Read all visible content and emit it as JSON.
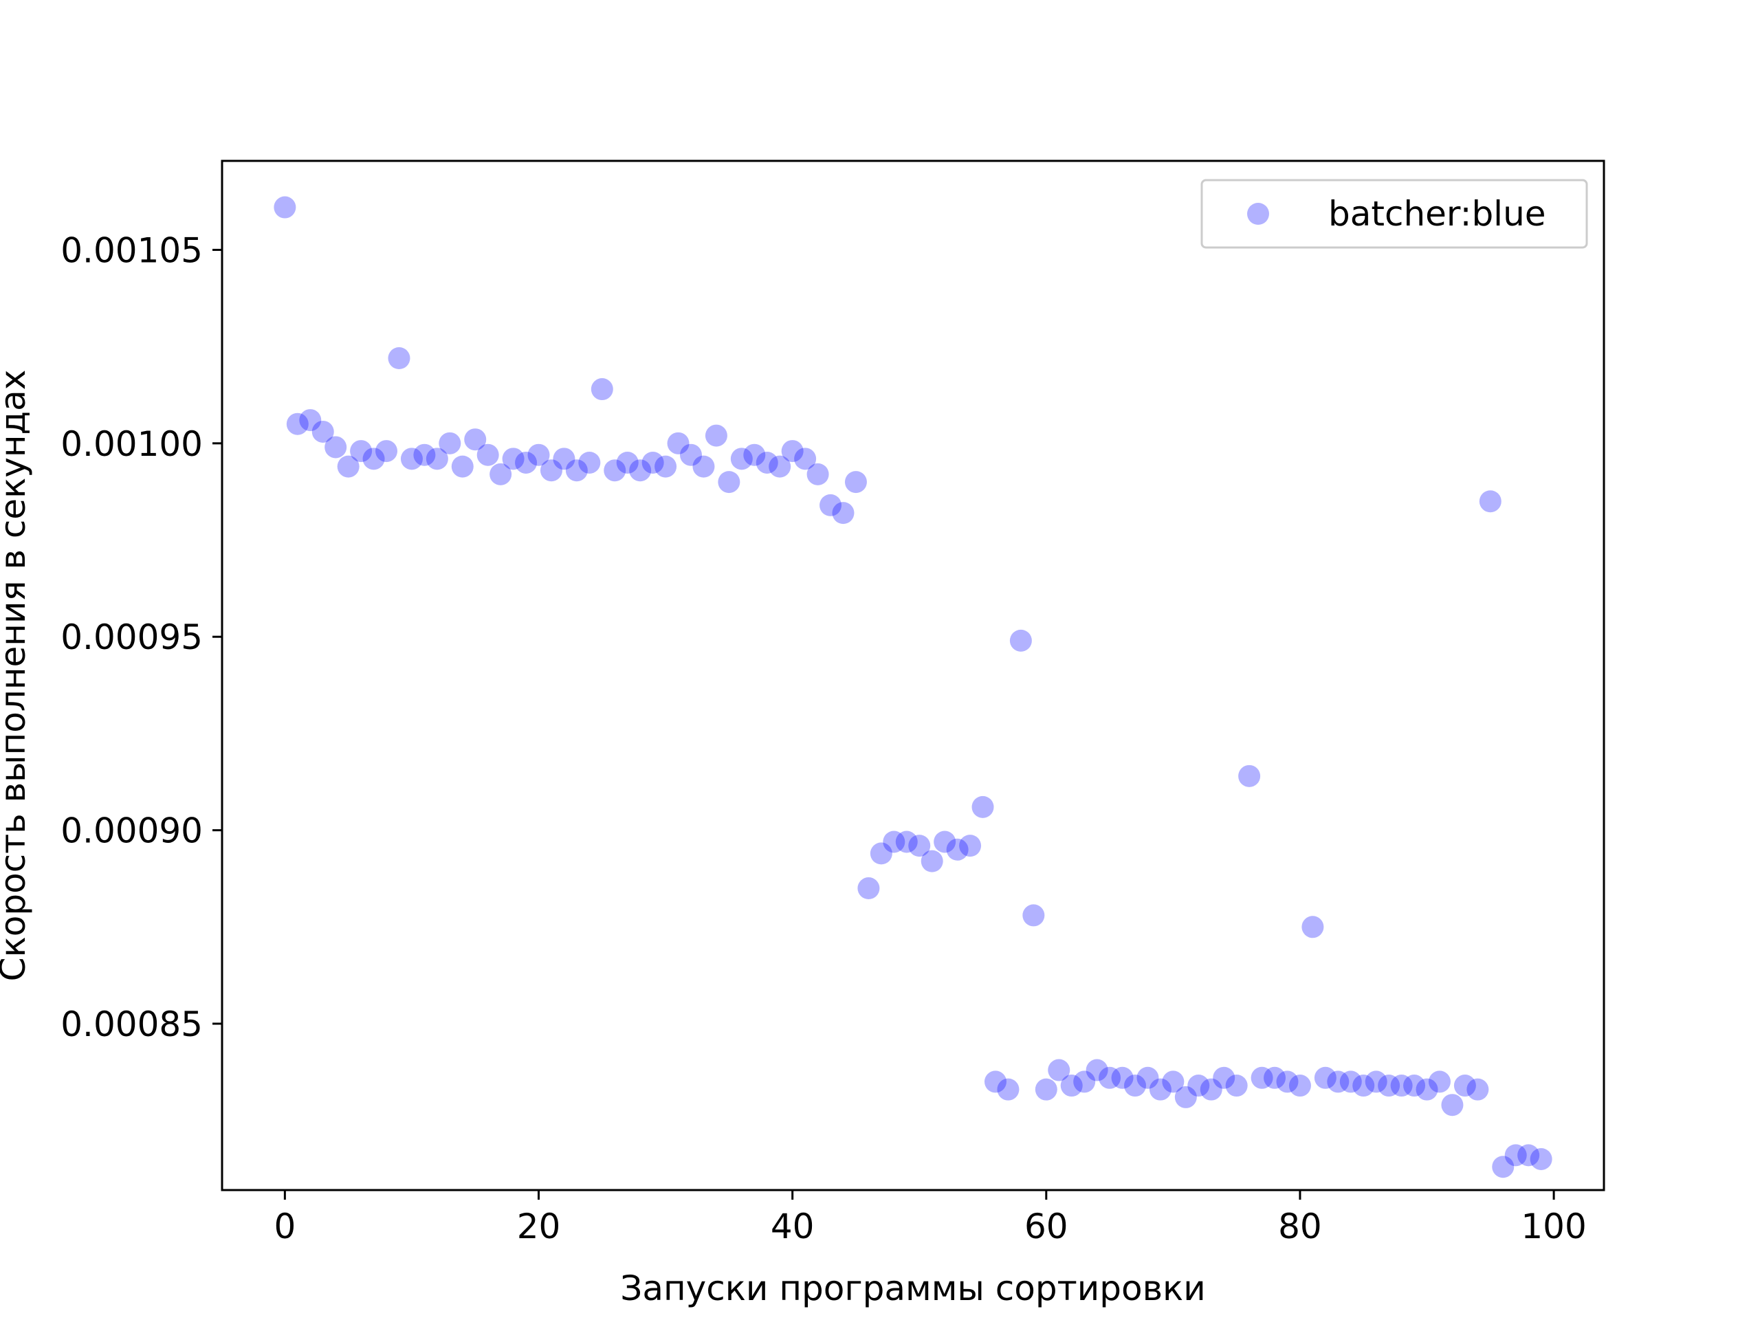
{
  "chart_data": {
    "type": "scatter",
    "title": "",
    "xlabel": "Запуски программы сортировки",
    "ylabel": "Скорость выполнения в секундах",
    "xlim": [
      -4.95,
      103.95
    ],
    "ylim": [
      0.000807,
      0.001073
    ],
    "xticks": [
      "0",
      "20",
      "40",
      "60",
      "80",
      "100"
    ],
    "yticks": [
      "0.00085",
      "0.00090",
      "0.00095",
      "0.00100",
      "0.00105"
    ],
    "grid": false,
    "legend": {
      "position": "top-right"
    },
    "series": [
      {
        "name": "batcher:blue",
        "color": "#0000ff",
        "alpha": 0.3,
        "x": [
          0,
          1,
          2,
          3,
          4,
          5,
          6,
          7,
          8,
          9,
          10,
          11,
          12,
          13,
          14,
          15,
          16,
          17,
          18,
          19,
          20,
          21,
          22,
          23,
          24,
          25,
          26,
          27,
          28,
          29,
          30,
          31,
          32,
          33,
          34,
          35,
          36,
          37,
          38,
          39,
          40,
          41,
          42,
          43,
          44,
          45,
          46,
          47,
          48,
          49,
          50,
          51,
          52,
          53,
          54,
          55,
          56,
          57,
          58,
          59,
          60,
          61,
          62,
          63,
          64,
          65,
          66,
          67,
          68,
          69,
          70,
          71,
          72,
          73,
          74,
          75,
          76,
          77,
          78,
          79,
          80,
          81,
          82,
          83,
          84,
          85,
          86,
          87,
          88,
          89,
          90,
          91,
          92,
          93,
          94,
          95,
          96,
          97,
          98,
          99
        ],
        "y": [
          0.001061,
          0.001005,
          0.001006,
          0.001003,
          0.000999,
          0.000994,
          0.000998,
          0.000996,
          0.000998,
          0.001022,
          0.000996,
          0.000997,
          0.000996,
          0.001,
          0.000994,
          0.001001,
          0.000997,
          0.000992,
          0.000996,
          0.000995,
          0.000997,
          0.000993,
          0.000996,
          0.000993,
          0.000995,
          0.001014,
          0.000993,
          0.000995,
          0.000993,
          0.000995,
          0.000994,
          0.001,
          0.000997,
          0.000994,
          0.001002,
          0.00099,
          0.000996,
          0.000997,
          0.000995,
          0.000994,
          0.000998,
          0.000996,
          0.000992,
          0.000984,
          0.000982,
          0.00099,
          0.000885,
          0.000894,
          0.000897,
          0.000897,
          0.000896,
          0.000892,
          0.000897,
          0.000895,
          0.000896,
          0.000906,
          0.000835,
          0.000833,
          0.000949,
          0.000878,
          0.000833,
          0.000838,
          0.000834,
          0.000835,
          0.000838,
          0.000836,
          0.000836,
          0.000834,
          0.000836,
          0.000833,
          0.000835,
          0.000831,
          0.000834,
          0.000833,
          0.000836,
          0.000834,
          0.000914,
          0.000836,
          0.000836,
          0.000835,
          0.000834,
          0.000875,
          0.000836,
          0.000835,
          0.000835,
          0.000834,
          0.000835,
          0.000834,
          0.000834,
          0.000834,
          0.000833,
          0.000835,
          0.000829,
          0.000834,
          0.000833,
          0.000985,
          0.000813,
          0.000816,
          0.000816,
          0.000815
        ]
      }
    ]
  }
}
